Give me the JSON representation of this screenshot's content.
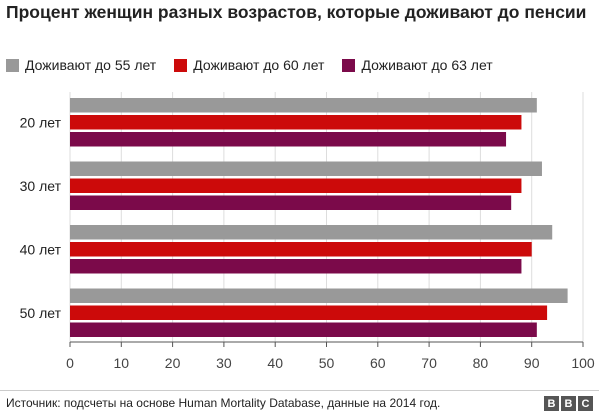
{
  "chart_data": {
    "type": "bar",
    "orientation": "horizontal",
    "title": "Процент женщин разных возрастов, которые доживают до пенсии",
    "categories": [
      "20 лет",
      "30 лет",
      "40 лет",
      "50 лет"
    ],
    "series": [
      {
        "name": "Доживают до 55 лет",
        "color": "#999999",
        "values": [
          91,
          92,
          94,
          97
        ]
      },
      {
        "name": "Доживают до 60 лет",
        "color": "#cc0a0a",
        "values": [
          88,
          88,
          90,
          93
        ]
      },
      {
        "name": "Доживают до 63 лет",
        "color": "#7b0a4a",
        "values": [
          85,
          86,
          88,
          91
        ]
      }
    ],
    "xlim": [
      0,
      100
    ],
    "xticks": [
      0,
      10,
      20,
      30,
      40,
      50,
      60,
      70,
      80,
      90,
      100
    ],
    "grid": true,
    "legend_position": "top-left"
  },
  "footer": {
    "source": "Источник: подсчеты на основе Human Mortality Database, данные на 2014 год.",
    "logo_letters": [
      "B",
      "B",
      "C"
    ]
  }
}
